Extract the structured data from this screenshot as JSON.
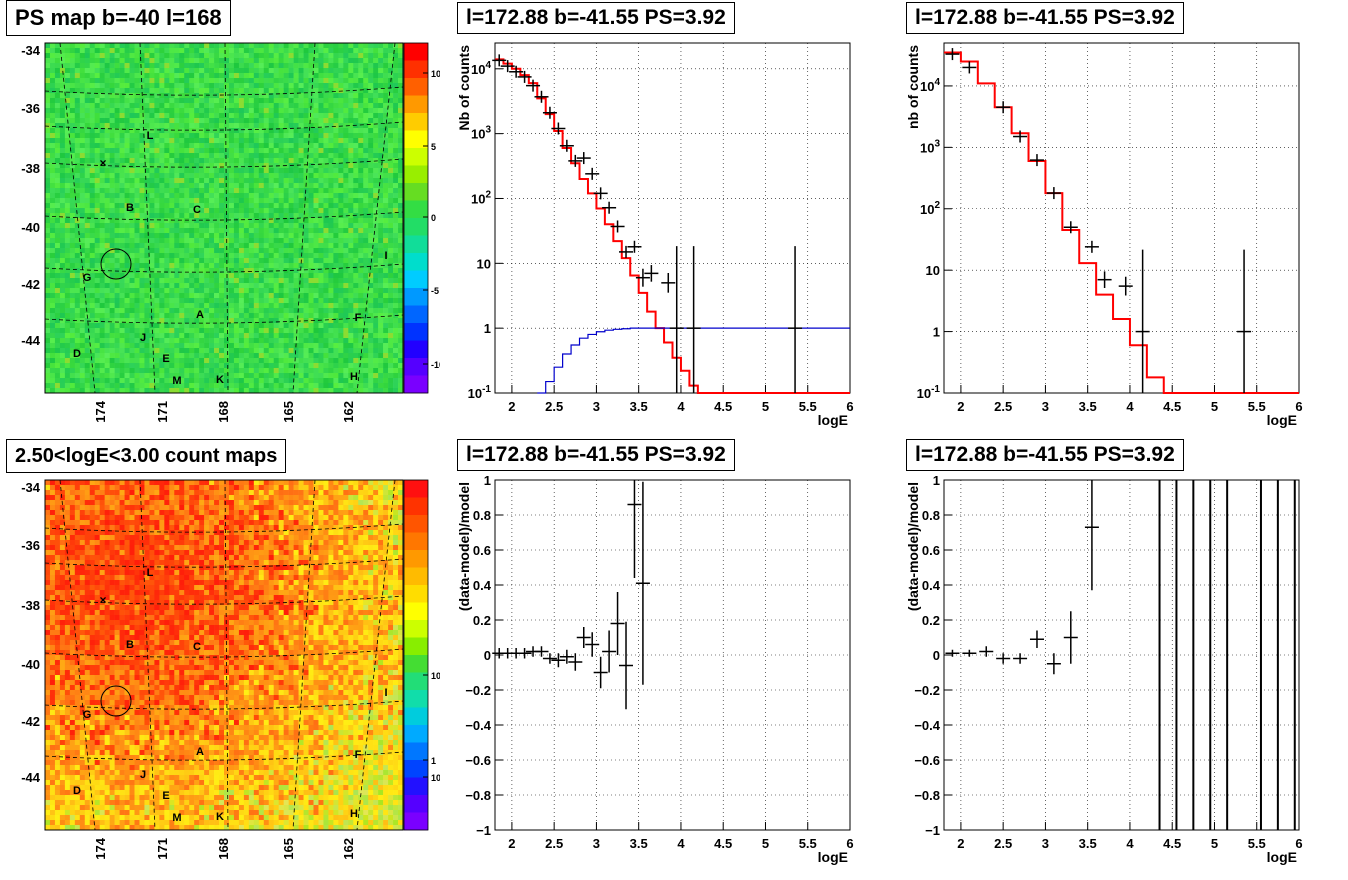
{
  "chart_data": [
    {
      "type": "heatmap",
      "title": "PS map b=-40 l=168",
      "y_ticks": [
        "-34",
        "-36",
        "-38",
        "-40",
        "-42",
        "-44"
      ],
      "x_ticks": [
        "174",
        "171",
        "168",
        "165",
        "162"
      ],
      "colorbar_ticks": [
        "10",
        "5",
        "0",
        "-5",
        "-10"
      ],
      "zrange": [
        -12,
        13
      ],
      "source_labels": [
        "L",
        "B",
        "C",
        "G",
        "I",
        "A",
        "F",
        "J",
        "D",
        "E",
        "M",
        "K",
        "H"
      ],
      "colors": {
        "low": "#7a00ff",
        "mid": "#22dd44",
        "high": "#ff1010"
      }
    },
    {
      "type": "line",
      "title": "l=172.88 b=-41.55 PS=3.92",
      "xlabel": "logE",
      "ylabel": "Nb of counts",
      "yscale": "log",
      "xlim": [
        1.8,
        6
      ],
      "ylim": [
        0.1,
        25000
      ],
      "x_ticks": [
        "2",
        "2.5",
        "3",
        "3.5",
        "4",
        "4.5",
        "5",
        "5.5",
        "6"
      ],
      "y_ticks": [
        "10^-1",
        "1",
        "10",
        "10^2",
        "10^3",
        "10^4"
      ],
      "series": [
        {
          "name": "",
          "color": "#ff0000",
          "x": [
            1.8,
            1.9,
            2.0,
            2.1,
            2.2,
            2.3,
            2.4,
            2.5,
            2.6,
            2.7,
            2.8,
            2.9,
            3.0,
            3.1,
            3.2,
            3.3,
            3.4,
            3.5,
            3.6,
            3.7,
            3.8,
            3.9,
            4.0,
            4.1,
            4.2,
            6.0
          ],
          "values": [
            14000,
            12000,
            10000,
            8000,
            6000,
            3500,
            2000,
            1100,
            600,
            350,
            200,
            120,
            70,
            40,
            22,
            12,
            6.5,
            3.5,
            1.8,
            1.0,
            0.6,
            0.35,
            0.22,
            0.13,
            0.1,
            0.1
          ]
        },
        {
          "name": "",
          "color": "#0000cc",
          "x": [
            2.3,
            2.4,
            2.5,
            2.6,
            2.7,
            2.8,
            2.9,
            3.0,
            3.1,
            3.2,
            3.3,
            3.4,
            6.0
          ],
          "values": [
            0.1,
            0.15,
            0.25,
            0.4,
            0.55,
            0.7,
            0.8,
            0.88,
            0.93,
            0.96,
            0.98,
            1.0,
            1.0
          ]
        }
      ],
      "points": [
        {
          "x": 1.85,
          "y": 13500
        },
        {
          "x": 1.95,
          "y": 11000
        },
        {
          "x": 2.05,
          "y": 9000
        },
        {
          "x": 2.15,
          "y": 7500
        },
        {
          "x": 2.25,
          "y": 5500
        },
        {
          "x": 2.35,
          "y": 3700
        },
        {
          "x": 2.45,
          "y": 2100
        },
        {
          "x": 2.55,
          "y": 1200
        },
        {
          "x": 2.65,
          "y": 650
        },
        {
          "x": 2.75,
          "y": 380
        },
        {
          "x": 2.85,
          "y": 420
        },
        {
          "x": 2.95,
          "y": 240
        },
        {
          "x": 3.05,
          "y": 120
        },
        {
          "x": 3.15,
          "y": 72
        },
        {
          "x": 3.25,
          "y": 37
        },
        {
          "x": 3.35,
          "y": 15
        },
        {
          "x": 3.45,
          "y": 18
        },
        {
          "x": 3.55,
          "y": 6.0
        },
        {
          "x": 3.65,
          "y": 7.0
        },
        {
          "x": 3.85,
          "y": 5.0
        },
        {
          "x": 3.95,
          "y": 1.0
        },
        {
          "x": 4.15,
          "y": 1.0
        },
        {
          "x": 5.35,
          "y": 1.0
        }
      ]
    },
    {
      "type": "line",
      "title": "l=172.88 b=-41.55 PS=3.92",
      "xlabel": "logE",
      "ylabel": "nb of counts",
      "yscale": "log",
      "xlim": [
        1.8,
        6
      ],
      "ylim": [
        0.1,
        50000
      ],
      "x_ticks": [
        "2",
        "2.5",
        "3",
        "3.5",
        "4",
        "4.5",
        "5",
        "5.5",
        "6"
      ],
      "y_ticks": [
        "10^-1",
        "1",
        "10",
        "10^2",
        "10^3",
        "10^4"
      ],
      "series": [
        {
          "name": "",
          "color": "#ff0000",
          "x": [
            1.8,
            2.0,
            2.2,
            2.4,
            2.6,
            2.8,
            3.0,
            3.2,
            3.4,
            3.6,
            3.8,
            4.0,
            4.2,
            4.4,
            4.6,
            6.0
          ],
          "values": [
            35000,
            25000,
            11000,
            4500,
            1700,
            600,
            180,
            45,
            13,
            4,
            1.6,
            0.6,
            0.18,
            0.1,
            0.1,
            0.1
          ]
        }
      ],
      "points": [
        {
          "x": 1.9,
          "y": 33000
        },
        {
          "x": 2.1,
          "y": 20000
        },
        {
          "x": 2.5,
          "y": 4500
        },
        {
          "x": 2.7,
          "y": 1500
        },
        {
          "x": 2.9,
          "y": 620
        },
        {
          "x": 3.1,
          "y": 180
        },
        {
          "x": 3.3,
          "y": 50
        },
        {
          "x": 3.55,
          "y": 24
        },
        {
          "x": 3.7,
          "y": 7.0
        },
        {
          "x": 3.95,
          "y": 5.5
        },
        {
          "x": 4.15,
          "y": 1.0
        },
        {
          "x": 5.35,
          "y": 1.0
        }
      ]
    },
    {
      "type": "heatmap",
      "title": "2.50<logE<3.00 count maps",
      "y_ticks": [
        "-34",
        "-36",
        "-38",
        "-40",
        "-42",
        "-44"
      ],
      "x_ticks": [
        "174",
        "171",
        "168",
        "165",
        "162"
      ],
      "colorbar_ticks": [
        "10",
        "1",
        "10^-1"
      ],
      "source_labels": [
        "L",
        "B",
        "C",
        "G",
        "I",
        "A",
        "F",
        "J",
        "D",
        "E",
        "M",
        "K",
        "H"
      ],
      "colors": {
        "low": "#7a00ff",
        "mid": "#33dd33",
        "high": "#ff2010"
      }
    },
    {
      "type": "scatter",
      "title": "l=172.88 b=-41.55 PS=3.92",
      "xlabel": "logE",
      "ylabel": "(data-model)/model",
      "xlim": [
        1.8,
        6
      ],
      "ylim": [
        -1,
        1
      ],
      "x_ticks": [
        "2",
        "2.5",
        "3",
        "3.5",
        "4",
        "4.5",
        "5",
        "5.5",
        "6"
      ],
      "y_ticks": [
        "-1",
        "-0.8",
        "-0.6",
        "-0.4",
        "-0.2",
        "0",
        "0.2",
        "0.4",
        "0.6",
        "0.8",
        "1"
      ],
      "points": [
        {
          "x": 1.85,
          "y": 0.01,
          "err": 0.03
        },
        {
          "x": 1.95,
          "y": 0.01,
          "err": 0.03
        },
        {
          "x": 2.05,
          "y": 0.01,
          "err": 0.03
        },
        {
          "x": 2.15,
          "y": 0.01,
          "err": 0.03
        },
        {
          "x": 2.25,
          "y": 0.02,
          "err": 0.03
        },
        {
          "x": 2.35,
          "y": 0.02,
          "err": 0.03
        },
        {
          "x": 2.45,
          "y": -0.02,
          "err": 0.03
        },
        {
          "x": 2.55,
          "y": -0.03,
          "err": 0.04
        },
        {
          "x": 2.65,
          "y": -0.01,
          "err": 0.04
        },
        {
          "x": 2.75,
          "y": -0.04,
          "err": 0.05
        },
        {
          "x": 2.85,
          "y": 0.1,
          "err": 0.06
        },
        {
          "x": 2.95,
          "y": 0.06,
          "err": 0.07
        },
        {
          "x": 3.05,
          "y": -0.1,
          "err": 0.09
        },
        {
          "x": 3.15,
          "y": 0.02,
          "err": 0.12
        },
        {
          "x": 3.25,
          "y": 0.18,
          "err": 0.18
        },
        {
          "x": 3.35,
          "y": -0.06,
          "err": 0.25
        },
        {
          "x": 3.45,
          "y": 0.86,
          "err": 0.42
        },
        {
          "x": 3.55,
          "y": 0.41,
          "err": 0.58
        }
      ]
    },
    {
      "type": "scatter",
      "title": "l=172.88 b=-41.55 PS=3.92",
      "xlabel": "logE",
      "ylabel": "(data-model)/model",
      "xlim": [
        1.8,
        6
      ],
      "ylim": [
        -1,
        1
      ],
      "x_ticks": [
        "2",
        "2.5",
        "3",
        "3.5",
        "4",
        "4.5",
        "5",
        "5.5",
        "6"
      ],
      "y_ticks": [
        "-1",
        "-0.8",
        "-0.6",
        "-0.4",
        "-0.2",
        "0",
        "0.2",
        "0.4",
        "0.6",
        "0.8",
        "1"
      ],
      "points": [
        {
          "x": 1.9,
          "y": 0.01,
          "err": 0.02
        },
        {
          "x": 2.1,
          "y": 0.01,
          "err": 0.02
        },
        {
          "x": 2.3,
          "y": 0.02,
          "err": 0.03
        },
        {
          "x": 2.5,
          "y": -0.02,
          "err": 0.03
        },
        {
          "x": 2.7,
          "y": -0.02,
          "err": 0.03
        },
        {
          "x": 2.9,
          "y": 0.09,
          "err": 0.05
        },
        {
          "x": 3.1,
          "y": -0.05,
          "err": 0.06
        },
        {
          "x": 3.3,
          "y": 0.1,
          "err": 0.15
        },
        {
          "x": 3.55,
          "y": 0.73,
          "err": 0.36
        }
      ],
      "full_range_bars_x": [
        4.35,
        4.55,
        4.75,
        4.95,
        5.15,
        5.55,
        5.75,
        5.95
      ]
    }
  ]
}
